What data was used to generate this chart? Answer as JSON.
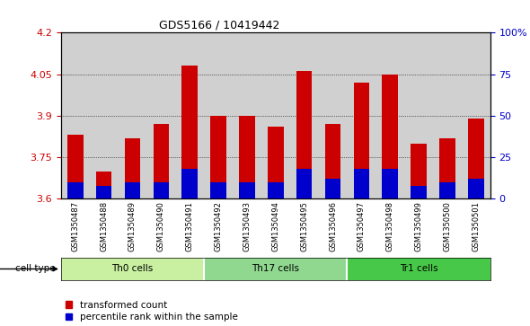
{
  "title": "GDS5166 / 10419442",
  "samples": [
    "GSM1350487",
    "GSM1350488",
    "GSM1350489",
    "GSM1350490",
    "GSM1350491",
    "GSM1350492",
    "GSM1350493",
    "GSM1350494",
    "GSM1350495",
    "GSM1350496",
    "GSM1350497",
    "GSM1350498",
    "GSM1350499",
    "GSM1350500",
    "GSM1350501"
  ],
  "red_values": [
    3.83,
    3.7,
    3.82,
    3.87,
    4.08,
    3.9,
    3.9,
    3.86,
    4.06,
    3.87,
    4.02,
    4.05,
    3.8,
    3.82,
    3.89
  ],
  "blue_pct": [
    10,
    8,
    10,
    10,
    18,
    10,
    10,
    10,
    18,
    12,
    18,
    18,
    8,
    10,
    12
  ],
  "y_min": 3.6,
  "y_max": 4.2,
  "y_ticks": [
    3.6,
    3.75,
    3.9,
    4.05,
    4.2
  ],
  "y_tick_labels": [
    "3.6",
    "3.75",
    "3.9",
    "4.05",
    "4.2"
  ],
  "right_y_ticks": [
    0,
    25,
    50,
    75,
    100
  ],
  "right_y_labels": [
    "0",
    "25",
    "50",
    "75",
    "100%"
  ],
  "cell_groups": [
    {
      "label": "Th0 cells",
      "start": 0,
      "end": 5,
      "color": "#c8f0a0"
    },
    {
      "label": "Th17 cells",
      "start": 5,
      "end": 10,
      "color": "#90d890"
    },
    {
      "label": "Tr1 cells",
      "start": 10,
      "end": 15,
      "color": "#48c848"
    }
  ],
  "red_color": "#cc0000",
  "blue_color": "#0000cc",
  "col_bg_color": "#d0d0d0",
  "legend_red": "transformed count",
  "legend_blue": "percentile rank within the sample"
}
